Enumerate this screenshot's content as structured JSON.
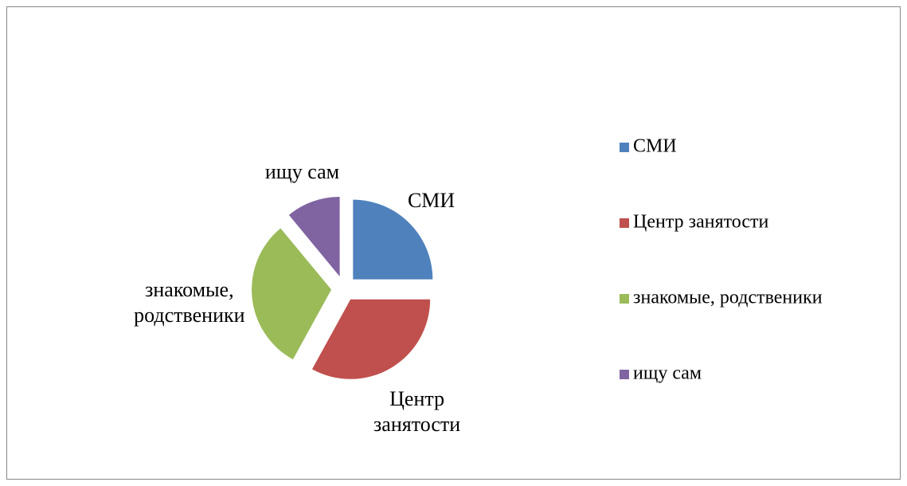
{
  "chart_data": {
    "type": "pie",
    "categories": [
      "СМИ",
      "Центр занятости",
      "знакомые, родственики",
      "ищу сам"
    ],
    "values": [
      25,
      33,
      31,
      11
    ],
    "colors": [
      "#4f81bd",
      "#c0504d",
      "#9bbb59",
      "#8064a2"
    ],
    "exploded": true,
    "legend": "right"
  }
}
